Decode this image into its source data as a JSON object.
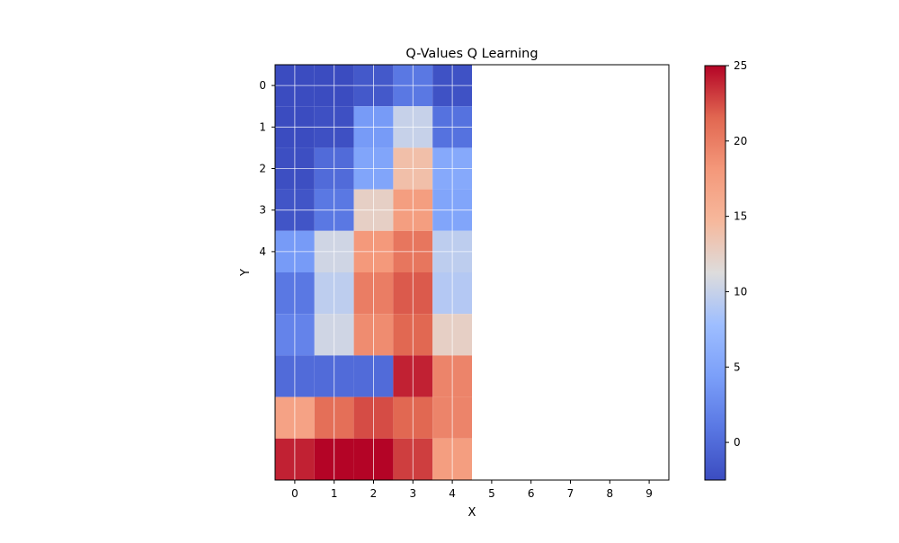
{
  "chart_data": {
    "type": "heatmap",
    "title": "Q-Values Q Learning",
    "xlabel": "X",
    "ylabel": "Y",
    "x_ticks": [
      "0",
      "1",
      "2",
      "3",
      "4",
      "5",
      "6",
      "7",
      "8",
      "9"
    ],
    "y_ticks": [
      "0",
      "1",
      "2",
      "3",
      "4"
    ],
    "xlim": [
      -0.5,
      9.5
    ],
    "ylim": [
      -0.5,
      9.5
    ],
    "grid": true,
    "colormap": "coolwarm",
    "colorbar": {
      "range": [
        -2.5,
        25
      ],
      "ticks": [
        "0",
        "5",
        "10",
        "15",
        "20",
        "25"
      ]
    },
    "values": [
      [
        -2.5,
        -2.5,
        -1.5,
        1.0,
        -2.0
      ],
      [
        -2.5,
        -2.2,
        4.0,
        10.0,
        0.5
      ],
      [
        -2.3,
        0.0,
        5.0,
        14.0,
        5.5
      ],
      [
        -1.8,
        1.0,
        12.5,
        17.5,
        5.0
      ],
      [
        4.0,
        10.5,
        18.0,
        20.5,
        9.5
      ],
      [
        1.0,
        9.5,
        20.0,
        22.0,
        9.0
      ],
      [
        2.0,
        10.5,
        19.0,
        21.5,
        12.5
      ],
      [
        0.0,
        0.0,
        0.0,
        24.0,
        19.5
      ],
      [
        17.0,
        21.0,
        22.5,
        21.5,
        19.5
      ],
      [
        24.0,
        25.0,
        25.0,
        23.0,
        17.5
      ]
    ]
  }
}
